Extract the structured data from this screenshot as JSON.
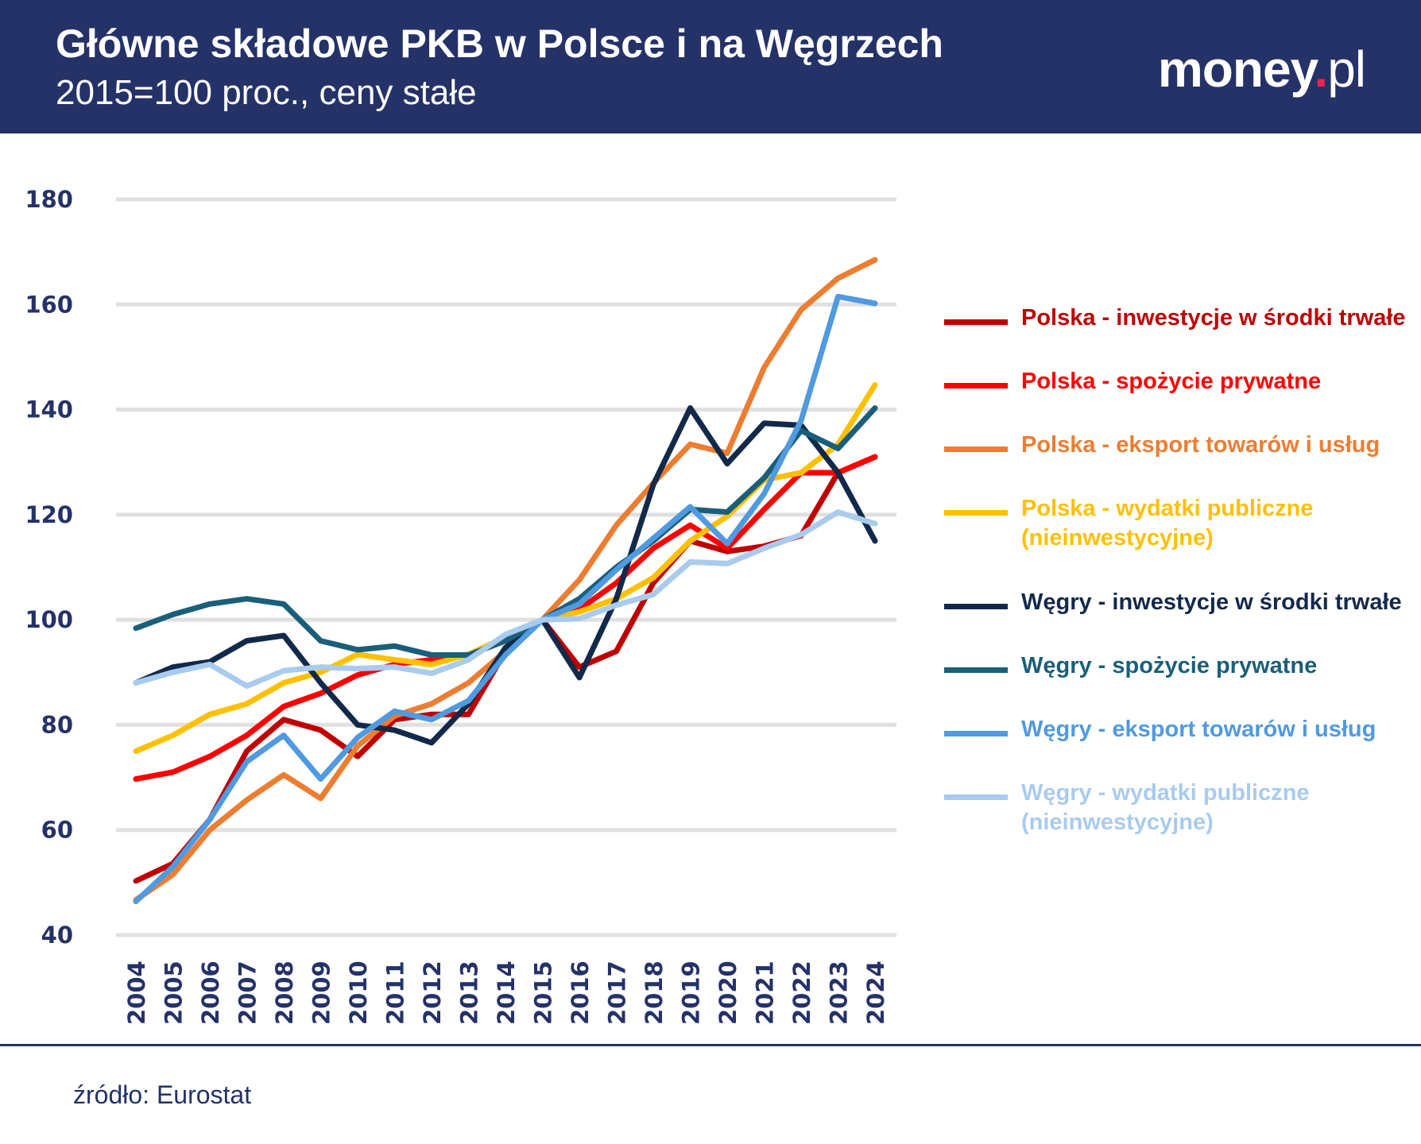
{
  "header": {
    "title": "Główne składowe PKB w Polsce i na Węgrzech",
    "subtitle": "2015=100 proc., ceny stałe",
    "logo_text": "money.pl",
    "logo_main": "money",
    "logo_dot": ".",
    "logo_suffix": "pl",
    "background": "#253268"
  },
  "source": "źródło: Eurostat",
  "chart_data": {
    "type": "line",
    "title": "Główne składowe PKB w Polsce i na Węgrzech",
    "subtitle": "2015=100 proc., ceny stałe",
    "xlabel": "",
    "ylabel": "",
    "ylim": [
      40,
      180
    ],
    "yticks": [
      40,
      60,
      80,
      100,
      120,
      140,
      160,
      180
    ],
    "grid": true,
    "legend_placement": "right",
    "x": [
      "2004",
      "2005",
      "2006",
      "2007",
      "2008",
      "2009",
      "2010",
      "2011",
      "2012",
      "2013",
      "2014",
      "2015",
      "2016",
      "2017",
      "2018",
      "2019",
      "2020",
      "2021",
      "2022",
      "2023",
      "2024"
    ],
    "series": [
      {
        "name": "Polska - inwestycje w środki trwałe",
        "color": "#c00000",
        "values": [
          50.3,
          53.6,
          62,
          75,
          81,
          79,
          74,
          81,
          82,
          82,
          94,
          100,
          91,
          94,
          107,
          115,
          113,
          114,
          116,
          128,
          131
        ]
      },
      {
        "name": "Polska - spożycie prywatne",
        "color": "#ff0000",
        "values": [
          69.7,
          71,
          74,
          78,
          83.5,
          86,
          89.5,
          91.5,
          92.4,
          93.4,
          96,
          100,
          102,
          107,
          113.6,
          118,
          113.6,
          121,
          128,
          128,
          131
        ]
      },
      {
        "name": "Polska - eksport towarów i usług",
        "color": "#ed7d31",
        "values": [
          46.7,
          51.5,
          60,
          65.7,
          70.5,
          66,
          76,
          81.7,
          84,
          88,
          94,
          100,
          107.6,
          118,
          126,
          133.4,
          131.7,
          148,
          159,
          165,
          168.5
        ]
      },
      {
        "name": "Polska - wydatki publiczne (nieinwestycyjne)",
        "color": "#ffc000",
        "values": [
          75,
          78,
          82,
          84,
          88,
          90,
          93.4,
          92.4,
          91.5,
          93.4,
          96.7,
          100,
          101.5,
          104,
          108,
          115,
          119.7,
          126.6,
          128,
          133.4,
          144.7
        ]
      },
      {
        "name": "Węgry - inwestycje w środki trwałe",
        "color": "#12294a",
        "values": [
          88,
          91,
          92,
          96,
          97,
          88,
          80,
          79,
          76.6,
          84,
          94.7,
          100,
          89,
          104,
          125.7,
          140.3,
          129.7,
          137.4,
          137,
          128,
          115
        ]
      },
      {
        "name": "Węgry - spożycie prywatne",
        "color": "#1a5f7a",
        "values": [
          98.4,
          101,
          103,
          104,
          103,
          96,
          94.3,
          95,
          93.3,
          93.3,
          96,
          100,
          104,
          110,
          115,
          121,
          120.5,
          127,
          136,
          132.6,
          140.3
        ]
      },
      {
        "name": "Węgry - eksport towarów i usług",
        "color": "#4f9ae0",
        "values": [
          46.4,
          53,
          62,
          73,
          78,
          69.7,
          77.6,
          82.6,
          81,
          84.6,
          93.3,
          100,
          103,
          109.5,
          115.5,
          121.5,
          114.5,
          124,
          137.9,
          161.5,
          160.2
        ]
      },
      {
        "name": "Węgry - wydatki publiczne (nieinwestycyjne)",
        "color": "#a9cbee",
        "values": [
          88,
          90,
          91.5,
          87.4,
          90.3,
          91,
          90.7,
          91,
          89.8,
          92.4,
          97.2,
          100,
          100.2,
          102.8,
          104.8,
          111,
          110.7,
          113.6,
          116.2,
          120.5,
          118.3
        ]
      }
    ]
  }
}
